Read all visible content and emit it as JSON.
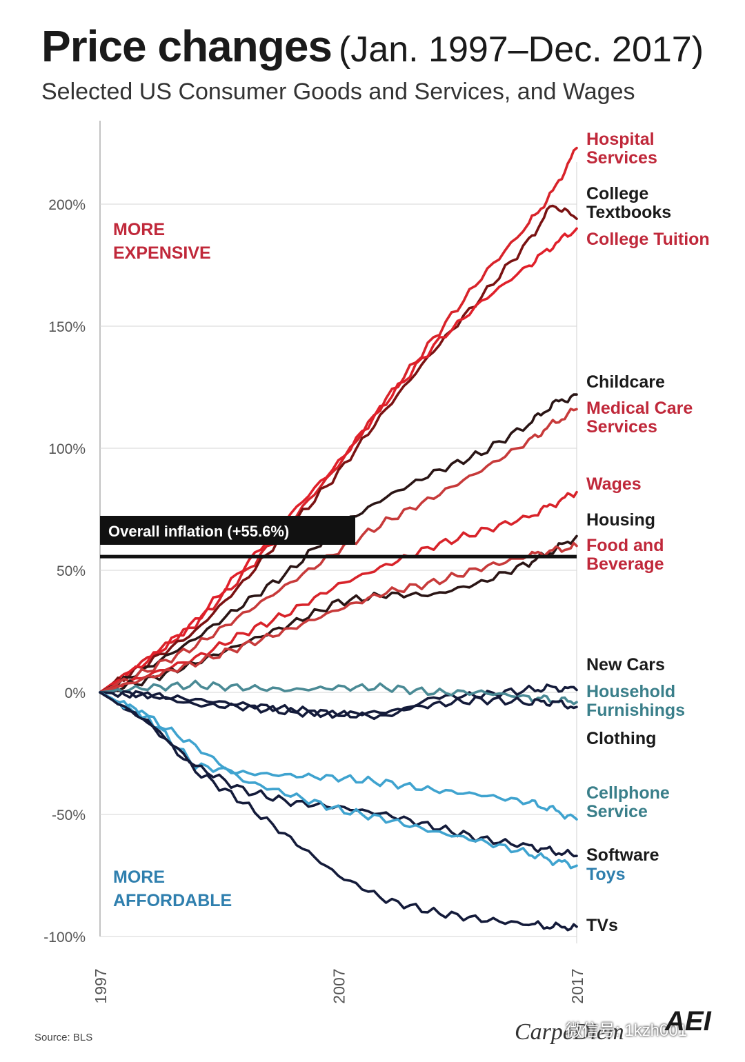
{
  "header": {
    "title": "Price changes",
    "title_range": "(Jan. 1997–Dec. 2017)",
    "subtitle": "Selected US Consumer Goods and Services, and Wages"
  },
  "annotations": {
    "more_expensive": [
      "MORE",
      "EXPENSIVE"
    ],
    "more_affordable": [
      "MORE",
      "AFFORDABLE"
    ],
    "overall_inflation": "Overall inflation (+55.6%)"
  },
  "footer": {
    "source": "Source: BLS",
    "brand": "CarpeDiem",
    "watermark": "微信号: 1kzh001",
    "logo_text": "AEI"
  },
  "colors": {
    "red": "#d8232a",
    "dark_red": "#7a1212",
    "very_dark": "#2a1515",
    "teal": "#4a8a95",
    "light_blue": "#3fa3cf",
    "navy": "#141b3a",
    "label_red": "#c0283a",
    "label_dark": "#1a1a1a",
    "label_teal": "#3a7f8a",
    "label_blue": "#2f7fae"
  },
  "chart_data": {
    "type": "line",
    "xlabel": "",
    "ylabel": "",
    "xlim": [
      1997,
      2017
    ],
    "ylim": [
      -100,
      230
    ],
    "x_ticks": [
      "1997",
      "2007",
      "2017"
    ],
    "y_ticks": [
      {
        "value": 200,
        "label": "200%"
      },
      {
        "value": 150,
        "label": "150%"
      },
      {
        "value": 100,
        "label": "100%"
      },
      {
        "value": 50,
        "label": "50%"
      },
      {
        "value": 0,
        "label": "0%"
      },
      {
        "value": -50,
        "label": "-50%"
      },
      {
        "value": -100,
        "label": "-100%"
      }
    ],
    "overall_inflation": 55.6,
    "x": [
      1997,
      1999,
      2001,
      2003,
      2005,
      2007,
      2009,
      2011,
      2013,
      2015,
      2016,
      2017
    ],
    "series": [
      {
        "name": "Hospital Services",
        "color": "#d8232a",
        "label_lines": [
          "Hospital",
          "Services"
        ],
        "label_color": "#c0283a",
        "label_y": 212,
        "values": [
          0,
          14,
          28,
          48,
          70,
          93,
          120,
          145,
          170,
          192,
          205,
          223
        ]
      },
      {
        "name": "College Textbooks",
        "color": "#7a1212",
        "label_lines": [
          "College",
          "Textbooks"
        ],
        "label_color": "#1a1a1a",
        "label_y": 196,
        "values": [
          0,
          12,
          25,
          45,
          68,
          90,
          116,
          140,
          162,
          185,
          200,
          194
        ]
      },
      {
        "name": "College Tuition",
        "color": "#e0202a",
        "label_lines": [
          "College Tuition"
        ],
        "label_color": "#c0283a",
        "label_y": 186,
        "values": [
          0,
          13,
          29,
          51,
          73,
          94,
          119,
          142,
          160,
          175,
          183,
          190
        ]
      },
      {
        "name": "Childcare",
        "color": "#2a1515",
        "label_lines": [
          "Childcare"
        ],
        "label_color": "#1a1a1a",
        "label_y": 128,
        "values": [
          0,
          10,
          22,
          36,
          50,
          68,
          80,
          90,
          98,
          110,
          118,
          122
        ]
      },
      {
        "name": "Medical Care Services",
        "color": "#c73a3a",
        "label_lines": [
          "Medical Care",
          "Services"
        ],
        "label_color": "#c0283a",
        "label_y": 113,
        "values": [
          0,
          9,
          19,
          32,
          45,
          58,
          70,
          80,
          91,
          103,
          110,
          116
        ]
      },
      {
        "name": "Wages",
        "color": "#d8232a",
        "label_lines": [
          "Wages"
        ],
        "label_color": "#c0283a",
        "label_y": 87,
        "values": [
          0,
          7,
          14,
          24,
          33,
          44,
          52,
          60,
          66,
          72,
          77,
          82
        ]
      },
      {
        "name": "Housing",
        "color": "#2a1515",
        "label_lines": [
          "Housing"
        ],
        "label_color": "#1a1a1a",
        "label_y": 72,
        "values": [
          0,
          5,
          12,
          20,
          28,
          37,
          40,
          40,
          45,
          53,
          58,
          64
        ]
      },
      {
        "name": "Food and Beverage",
        "color": "#c73a3a",
        "label_lines": [
          "Food and",
          "Beverage"
        ],
        "label_color": "#c0283a",
        "label_y": 56,
        "values": [
          0,
          6,
          12,
          19,
          26,
          34,
          41,
          45,
          51,
          56,
          58,
          60
        ]
      },
      {
        "name": "New Cars",
        "color": "#141b3a",
        "label_lines": [
          "New Cars"
        ],
        "label_color": "#1a1a1a",
        "label_y": 12,
        "values": [
          0,
          -1,
          -3,
          -5,
          -7,
          -9,
          -10,
          -2,
          -1,
          1,
          2,
          1
        ]
      },
      {
        "name": "Household Furnishings",
        "color": "#4a8a95",
        "label_lines": [
          "Household",
          "Furnishings"
        ],
        "label_color": "#3a7f8a",
        "label_y": -2,
        "values": [
          0,
          2,
          3,
          2,
          1,
          2,
          2,
          0,
          0,
          -2,
          -3,
          -4
        ]
      },
      {
        "name": "Clothing",
        "color": "#141b3a",
        "label_lines": [
          "Clothing"
        ],
        "label_color": "#1a1a1a",
        "label_y": -18,
        "values": [
          0,
          -1,
          -5,
          -6,
          -8,
          -9,
          -8,
          -5,
          -3,
          -4,
          -4,
          -6
        ]
      },
      {
        "name": "Cellphone Service",
        "color": "#3fa3cf",
        "label_lines": [
          "Cellphone",
          "Service"
        ],
        "label_color": "#3a7f8a",
        "label_y": -42,
        "values": [
          0,
          -10,
          -30,
          -33,
          -34,
          -35,
          -37,
          -40,
          -42,
          -45,
          -48,
          -52
        ]
      },
      {
        "name": "Software",
        "color": "#141b3a",
        "label_lines": [
          "Software"
        ],
        "label_color": "#1a1a1a",
        "label_y": -66,
        "values": [
          0,
          -12,
          -30,
          -40,
          -45,
          -47,
          -50,
          -55,
          -60,
          -63,
          -65,
          -67
        ]
      },
      {
        "name": "Toys",
        "color": "#3fa3cf",
        "label_lines": [
          "Toys"
        ],
        "label_color": "#2f7fae",
        "label_y": -74,
        "values": [
          0,
          -10,
          -22,
          -36,
          -42,
          -48,
          -52,
          -57,
          -61,
          -66,
          -69,
          -71
        ]
      },
      {
        "name": "TVs",
        "color": "#141b3a",
        "label_lines": [
          "TVs"
        ],
        "label_color": "#1a1a1a",
        "label_y": -95,
        "values": [
          0,
          -12,
          -32,
          -45,
          -60,
          -75,
          -85,
          -90,
          -93,
          -95,
          -96,
          -96
        ]
      }
    ]
  }
}
